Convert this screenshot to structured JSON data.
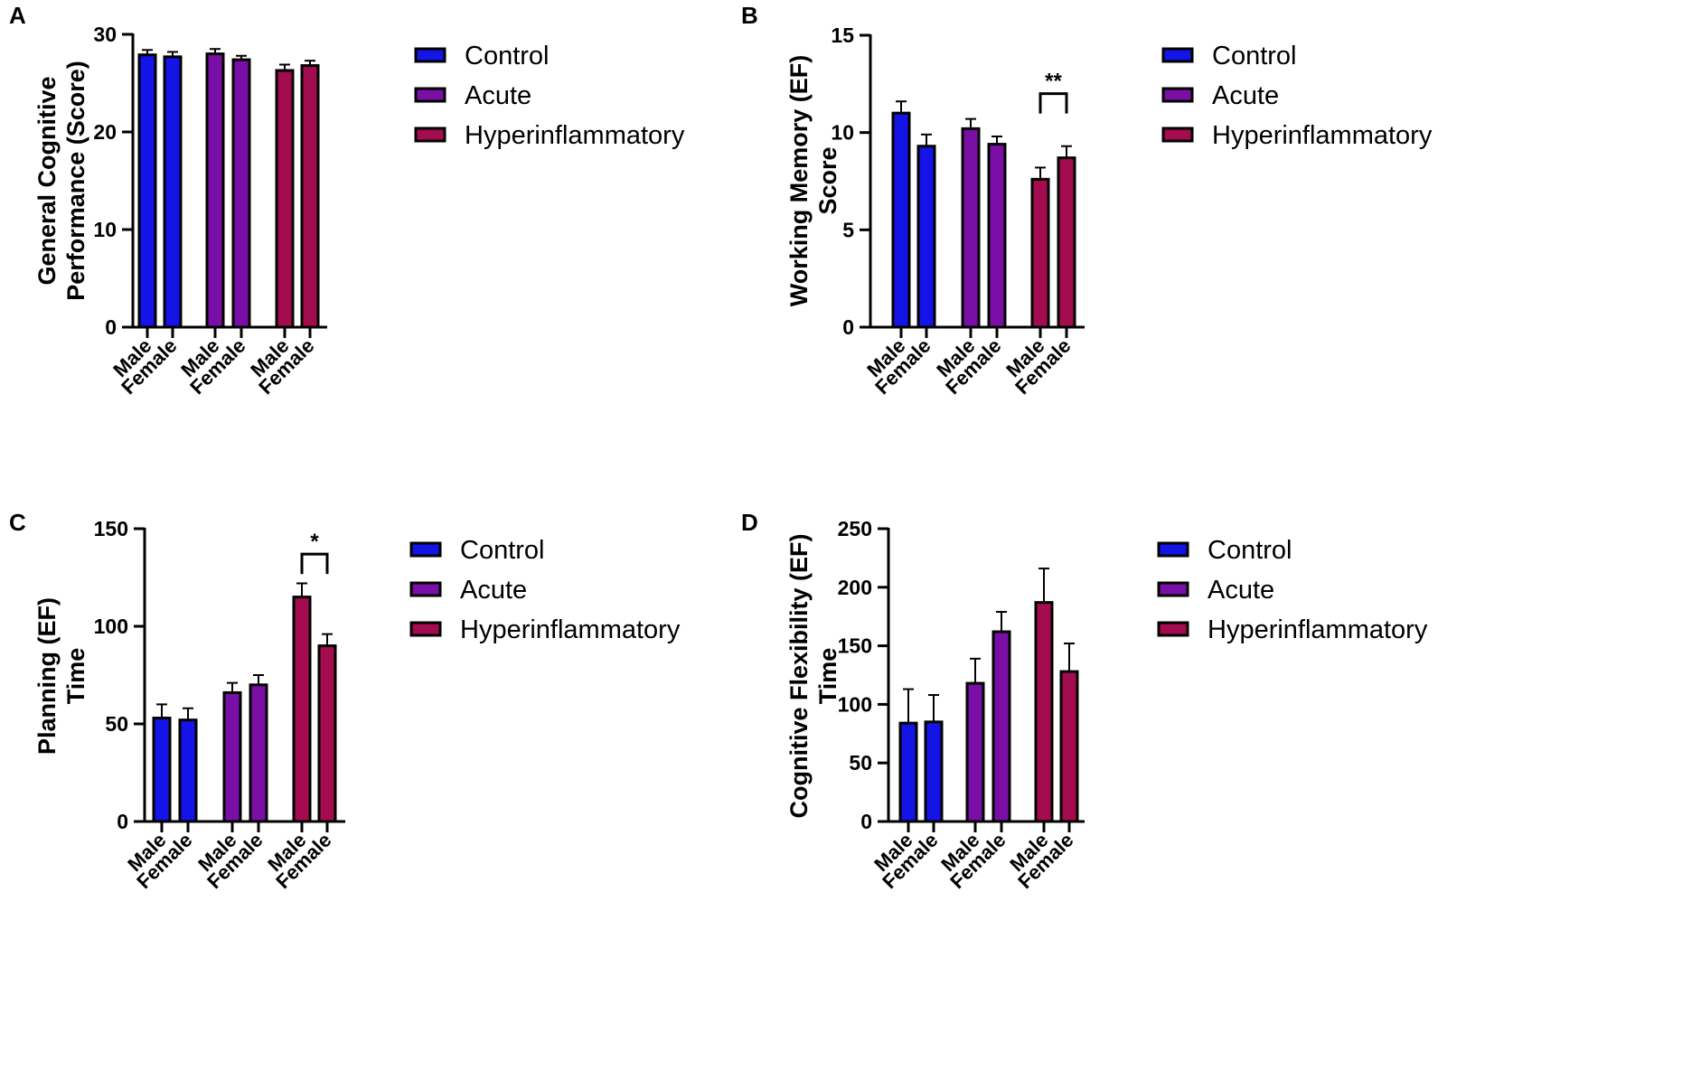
{
  "legend": {
    "items": [
      {
        "label": "Control",
        "color": "#1414e6"
      },
      {
        "label": "Acute",
        "color": "#7a0fa6"
      },
      {
        "label": "Hyperinflammatory",
        "color": "#a30c4e"
      }
    ]
  },
  "chart_data": [
    {
      "panel": "A",
      "type": "bar",
      "ylabel": [
        "General Cognitive",
        "Performance (Score)"
      ],
      "ylim": [
        0,
        30
      ],
      "yticks": [
        0,
        10,
        20,
        30
      ],
      "groups": [
        "Control",
        "Acute",
        "Hyperinflammatory"
      ],
      "categories": [
        "Male",
        "Female"
      ],
      "series": [
        {
          "name": "Control",
          "values": [
            27.9,
            27.7
          ],
          "errors": [
            0.5,
            0.5
          ]
        },
        {
          "name": "Acute",
          "values": [
            28.0,
            27.4
          ],
          "errors": [
            0.5,
            0.4
          ]
        },
        {
          "name": "Hyperinflammatory",
          "values": [
            26.3,
            26.8
          ],
          "errors": [
            0.6,
            0.5
          ]
        }
      ],
      "significance": []
    },
    {
      "panel": "B",
      "type": "bar",
      "ylabel": [
        "Working Memory (EF)",
        "Score"
      ],
      "ylim": [
        0,
        15
      ],
      "yticks": [
        0,
        5,
        10,
        15
      ],
      "groups": [
        "Control",
        "Acute",
        "Hyperinflammatory"
      ],
      "categories": [
        "Male",
        "Female"
      ],
      "series": [
        {
          "name": "Control",
          "values": [
            11.0,
            9.3
          ],
          "errors": [
            0.6,
            0.6
          ]
        },
        {
          "name": "Acute",
          "values": [
            10.2,
            9.4
          ],
          "errors": [
            0.5,
            0.4
          ]
        },
        {
          "name": "Hyperinflammatory",
          "values": [
            7.6,
            8.7
          ],
          "errors": [
            0.6,
            0.6
          ]
        }
      ],
      "significance": [
        {
          "label": "**",
          "group": 2,
          "bracket_value": 12.0
        }
      ]
    },
    {
      "panel": "C",
      "type": "bar",
      "ylabel": [
        "Planning (EF)",
        "Time"
      ],
      "ylim": [
        0,
        150
      ],
      "yticks": [
        0,
        50,
        100,
        150
      ],
      "groups": [
        "Control",
        "Acute",
        "Hyperinflammatory"
      ],
      "categories": [
        "Male",
        "Female"
      ],
      "series": [
        {
          "name": "Control",
          "values": [
            53,
            52
          ],
          "errors": [
            7,
            6
          ]
        },
        {
          "name": "Acute",
          "values": [
            66,
            70
          ],
          "errors": [
            5,
            5
          ]
        },
        {
          "name": "Hyperinflammatory",
          "values": [
            115,
            90
          ],
          "errors": [
            7,
            6
          ]
        }
      ],
      "significance": [
        {
          "label": "*",
          "group": 2,
          "bracket_value": 137
        }
      ]
    },
    {
      "panel": "D",
      "type": "bar",
      "ylabel": [
        "Cognitive Flexibility (EF)",
        "Time"
      ],
      "ylim": [
        0,
        250
      ],
      "yticks": [
        0,
        50,
        100,
        150,
        200,
        250
      ],
      "groups": [
        "Control",
        "Acute",
        "Hyperinflammatory"
      ],
      "categories": [
        "Male",
        "Female"
      ],
      "series": [
        {
          "name": "Control",
          "values": [
            84,
            85
          ],
          "errors": [
            29,
            23
          ]
        },
        {
          "name": "Acute",
          "values": [
            118,
            162
          ],
          "errors": [
            21,
            17
          ]
        },
        {
          "name": "Hyperinflammatory",
          "values": [
            187,
            128
          ],
          "errors": [
            29,
            24
          ]
        }
      ],
      "significance": []
    }
  ]
}
